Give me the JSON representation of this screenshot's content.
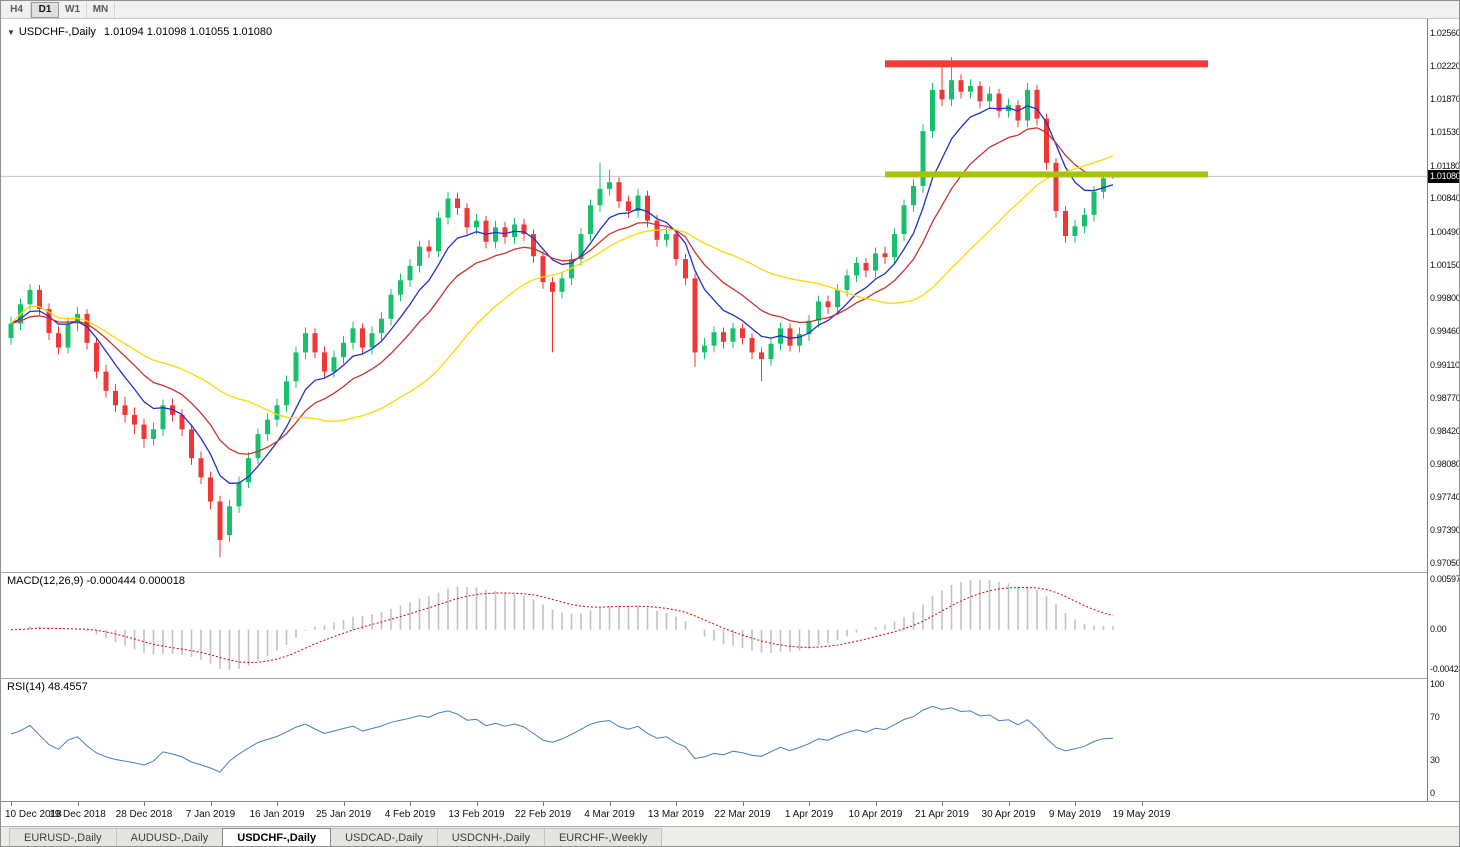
{
  "toolbar": {
    "timeframes": [
      {
        "label": "H4",
        "active": false
      },
      {
        "label": "D1",
        "active": true
      },
      {
        "label": "W1",
        "active": false
      },
      {
        "label": "MN",
        "active": false
      }
    ]
  },
  "chart_header": {
    "collapse_icon": "▼",
    "symbol_label": "USDCHF-,Daily",
    "ohlc_values": "1.01094 1.01098 1.01055 1.01080"
  },
  "chart_data": {
    "type": "candlestick",
    "symbol": "USDCHF-",
    "timeframe": "Daily",
    "last_ohlc": {
      "open": 1.01094,
      "high": 1.01098,
      "low": 1.01055,
      "close": 1.0108
    },
    "current_price": 1.0108,
    "current_price_label": "1.01080",
    "bull_color": "#17c06c",
    "bear_color": "#f23535",
    "price_axis_ticks": [
      "1.02560",
      "1.02220",
      "1.01870",
      "1.01530",
      "1.01180",
      "1.00840",
      "1.00490",
      "1.00150",
      "0.99800",
      "0.99460",
      "0.99110",
      "0.98770",
      "0.98420",
      "0.98080",
      "0.97740",
      "0.97390",
      "0.97050"
    ],
    "x_date_labels": [
      "10 Dec 2018",
      "19 Dec 2018",
      "28 Dec 2018",
      "7 Jan 2019",
      "16 Jan 2019",
      "25 Jan 2019",
      "4 Feb 2019",
      "13 Feb 2019",
      "22 Feb 2019",
      "4 Mar 2019",
      "13 Mar 2019",
      "22 Mar 2019",
      "1 Apr 2019",
      "10 Apr 2019",
      "21 Apr 2019",
      "30 Apr 2019",
      "9 May 2019",
      "19 May 2019"
    ],
    "candles": [
      [
        0.994,
        0.9962,
        0.9933,
        0.9955
      ],
      [
        0.9955,
        0.9981,
        0.9948,
        0.9975
      ],
      [
        0.9975,
        0.9996,
        0.9969,
        0.999
      ],
      [
        0.999,
        0.9995,
        0.9964,
        0.997
      ],
      [
        0.997,
        0.9976,
        0.9938,
        0.9945
      ],
      [
        0.9945,
        0.9952,
        0.9923,
        0.993
      ],
      [
        0.993,
        0.9961,
        0.9924,
        0.9955
      ],
      [
        0.9955,
        0.9972,
        0.9947,
        0.9965
      ],
      [
        0.9965,
        0.997,
        0.9928,
        0.9935
      ],
      [
        0.9935,
        0.994,
        0.9898,
        0.9905
      ],
      [
        0.9905,
        0.9912,
        0.9878,
        0.9885
      ],
      [
        0.9885,
        0.9892,
        0.9863,
        0.987
      ],
      [
        0.987,
        0.9879,
        0.9852,
        0.986
      ],
      [
        0.986,
        0.9868,
        0.984,
        0.985
      ],
      [
        0.985,
        0.9856,
        0.9826,
        0.9835
      ],
      [
        0.9835,
        0.9852,
        0.9828,
        0.9845
      ],
      [
        0.9845,
        0.9876,
        0.9838,
        0.987
      ],
      [
        0.987,
        0.9877,
        0.9853,
        0.986
      ],
      [
        0.986,
        0.9866,
        0.9838,
        0.9845
      ],
      [
        0.9845,
        0.985,
        0.9808,
        0.9815
      ],
      [
        0.9815,
        0.9822,
        0.9788,
        0.9795
      ],
      [
        0.9795,
        0.9801,
        0.9762,
        0.977
      ],
      [
        0.977,
        0.9776,
        0.9712,
        0.973
      ],
      [
        0.9735,
        0.9772,
        0.9728,
        0.9765
      ],
      [
        0.9765,
        0.9796,
        0.9758,
        0.979
      ],
      [
        0.979,
        0.9821,
        0.9784,
        0.9815
      ],
      [
        0.9815,
        0.9846,
        0.9809,
        0.984
      ],
      [
        0.984,
        0.9862,
        0.9833,
        0.9855
      ],
      [
        0.9855,
        0.9877,
        0.9848,
        0.987
      ],
      [
        0.987,
        0.9901,
        0.9863,
        0.9895
      ],
      [
        0.9895,
        0.9931,
        0.9888,
        0.9925
      ],
      [
        0.9925,
        0.9951,
        0.9918,
        0.9945
      ],
      [
        0.9945,
        0.995,
        0.9919,
        0.9925
      ],
      [
        0.9925,
        0.9931,
        0.9898,
        0.9905
      ],
      [
        0.9905,
        0.9927,
        0.9899,
        0.992
      ],
      [
        0.992,
        0.9942,
        0.9913,
        0.9935
      ],
      [
        0.9935,
        0.9957,
        0.9928,
        0.995
      ],
      [
        0.995,
        0.9955,
        0.9924,
        0.993
      ],
      [
        0.993,
        0.9952,
        0.9923,
        0.9945
      ],
      [
        0.9945,
        0.9967,
        0.9938,
        0.996
      ],
      [
        0.996,
        0.9991,
        0.9953,
        0.9985
      ],
      [
        0.9985,
        1.0007,
        0.9978,
        1.0
      ],
      [
        1.0,
        1.0022,
        0.9993,
        1.0015
      ],
      [
        1.0015,
        1.0041,
        1.0008,
        1.0035
      ],
      [
        1.0035,
        1.0042,
        1.0023,
        1.003
      ],
      [
        1.003,
        1.0071,
        1.0024,
        1.0065
      ],
      [
        1.0065,
        1.0092,
        1.0058,
        1.0085
      ],
      [
        1.0085,
        1.0091,
        1.0068,
        1.0075
      ],
      [
        1.0075,
        1.008,
        1.0048,
        1.0055
      ],
      [
        1.0055,
        1.0069,
        1.0048,
        1.0062
      ],
      [
        1.0062,
        1.0067,
        1.0033,
        1.004
      ],
      [
        1.004,
        1.0062,
        1.0033,
        1.0055
      ],
      [
        1.0055,
        1.0061,
        1.0038,
        1.0045
      ],
      [
        1.0045,
        1.0065,
        1.0038,
        1.0058
      ],
      [
        1.0058,
        1.0064,
        1.0041,
        1.0048
      ],
      [
        1.0048,
        1.0053,
        1.0018,
        1.0025
      ],
      [
        1.0025,
        1.003,
        0.9991,
        0.9998
      ],
      [
        0.9998,
        1.0003,
        0.9925,
        0.9988
      ],
      [
        0.9988,
        1.0009,
        0.9981,
        1.0002
      ],
      [
        1.0002,
        1.0029,
        0.9995,
        1.0022
      ],
      [
        1.0022,
        1.0054,
        1.0015,
        1.0048
      ],
      [
        1.0048,
        1.0084,
        1.0041,
        1.0078
      ],
      [
        1.0078,
        1.0122,
        1.0071,
        1.0095
      ],
      [
        1.0095,
        1.0115,
        1.0088,
        1.0102
      ],
      [
        1.0102,
        1.0107,
        1.0075,
        1.0082
      ],
      [
        1.0082,
        1.0088,
        1.0065,
        1.0072
      ],
      [
        1.0072,
        1.0095,
        1.0065,
        1.0088
      ],
      [
        1.0088,
        1.0093,
        1.0055,
        1.0062
      ],
      [
        1.0062,
        1.0068,
        1.0035,
        1.0042
      ],
      [
        1.0042,
        1.0055,
        1.0035,
        1.0048
      ],
      [
        1.0048,
        1.0053,
        1.0015,
        1.0022
      ],
      [
        1.0022,
        1.0027,
        0.9995,
        1.0002
      ],
      [
        1.0002,
        1.0007,
        0.991,
        0.9925
      ],
      [
        0.9925,
        0.994,
        0.9918,
        0.9932
      ],
      [
        0.9932,
        0.9952,
        0.9925,
        0.9946
      ],
      [
        0.9946,
        0.9951,
        0.9929,
        0.9936
      ],
      [
        0.9936,
        0.9956,
        0.9929,
        0.995
      ],
      [
        0.995,
        0.9955,
        0.9933,
        0.994
      ],
      [
        0.994,
        0.9945,
        0.9918,
        0.9925
      ],
      [
        0.9925,
        0.993,
        0.9895,
        0.9918
      ],
      [
        0.9918,
        0.994,
        0.9911,
        0.9934
      ],
      [
        0.9934,
        0.9956,
        0.9927,
        0.995
      ],
      [
        0.995,
        0.9955,
        0.9926,
        0.9932
      ],
      [
        0.9932,
        0.9951,
        0.9925,
        0.9944
      ],
      [
        0.9944,
        0.9964,
        0.9937,
        0.9958
      ],
      [
        0.9958,
        0.9984,
        0.9951,
        0.9978
      ],
      [
        0.9978,
        0.9984,
        0.9965,
        0.9972
      ],
      [
        0.9972,
        0.9996,
        0.9965,
        0.999
      ],
      [
        0.999,
        1.0011,
        0.9983,
        1.0005
      ],
      [
        1.0005,
        1.0024,
        0.9998,
        1.0018
      ],
      [
        1.0018,
        1.0023,
        1.0003,
        1.001
      ],
      [
        1.001,
        1.0034,
        1.0003,
        1.0028
      ],
      [
        1.0028,
        1.0035,
        1.0017,
        1.0024
      ],
      [
        1.0024,
        1.0054,
        1.0017,
        1.0048
      ],
      [
        1.0048,
        1.0084,
        1.0041,
        1.0078
      ],
      [
        1.0078,
        1.0105,
        1.0071,
        1.0098
      ],
      [
        1.0098,
        1.0162,
        1.0091,
        1.0155
      ],
      [
        1.0155,
        1.0205,
        1.0148,
        1.0198
      ],
      [
        1.0198,
        1.0225,
        1.0181,
        1.0188
      ],
      [
        1.0188,
        1.0232,
        1.0181,
        1.0208
      ],
      [
        1.0208,
        1.0214,
        1.0189,
        1.0196
      ],
      [
        1.0196,
        1.0209,
        1.0189,
        1.0202
      ],
      [
        1.0202,
        1.0207,
        1.0179,
        1.0186
      ],
      [
        1.0186,
        1.0201,
        1.0179,
        1.0194
      ],
      [
        1.0194,
        1.0199,
        1.0169,
        1.0176
      ],
      [
        1.0176,
        1.0189,
        1.0169,
        1.0182
      ],
      [
        1.0182,
        1.0187,
        1.0159,
        1.0166
      ],
      [
        1.0166,
        1.0205,
        1.0159,
        1.0198
      ],
      [
        1.0198,
        1.0203,
        1.0161,
        1.0168
      ],
      [
        1.0168,
        1.0173,
        1.0115,
        1.0122
      ],
      [
        1.0122,
        1.0127,
        1.0065,
        1.0072
      ],
      [
        1.0072,
        1.0077,
        1.0039,
        1.0046
      ],
      [
        1.0046,
        1.0063,
        1.0039,
        1.0056
      ],
      [
        1.0056,
        1.0075,
        1.0049,
        1.0068
      ],
      [
        1.0068,
        1.0098,
        1.0061,
        1.0092
      ],
      [
        1.0092,
        1.0112,
        1.0085,
        1.0106
      ],
      [
        1.01094,
        1.01098,
        1.01055,
        1.0108
      ]
    ],
    "moving_averages": [
      {
        "name": "fast-ma",
        "type": "ema",
        "period": 7,
        "color": "#2031c8"
      },
      {
        "name": "medium-ma",
        "type": "ema",
        "period": 14,
        "color": "#c83232"
      },
      {
        "name": "slow-ma",
        "type": "sma",
        "period": 26,
        "color": "#ffd700"
      }
    ],
    "objects": [
      {
        "name": "resistance-line",
        "color": "#f43b3b",
        "price": 1.0225,
        "start_index": 92,
        "end_index": 126,
        "thickness": 7
      },
      {
        "name": "support-line",
        "color": "#a6c40e",
        "price": 1.011,
        "start_index": 92,
        "end_index": 126,
        "thickness": 6
      }
    ],
    "macd": {
      "label": "MACD(12,26,9)",
      "value_labels": "-0.000444 0.000018",
      "fast": 12,
      "slow": 26,
      "signal": 9,
      "axis_labels": [
        "0.00597",
        "0.00",
        "-0.00424"
      ],
      "hist_color": "#c2c2c2",
      "signal_color": "#e00000"
    },
    "rsi": {
      "label": "RSI(14)",
      "value_label": "48.4557",
      "period": 14,
      "axis_labels": [
        {
          "v": 100,
          "t": "100"
        },
        {
          "v": 70,
          "t": "70"
        },
        {
          "v": 30,
          "t": "30"
        },
        {
          "v": 0,
          "t": "0"
        }
      ],
      "color": "#4a7ebb"
    }
  },
  "tabs": [
    {
      "label": "EURUSD-,Daily",
      "active": false
    },
    {
      "label": "AUDUSD-,Daily",
      "active": false
    },
    {
      "label": "USDCHF-,Daily",
      "active": true
    },
    {
      "label": "USDCAD-,Daily",
      "active": false
    },
    {
      "label": "USDCNH-,Daily",
      "active": false
    },
    {
      "label": "EURCHF-,Weekly",
      "active": false
    }
  ]
}
